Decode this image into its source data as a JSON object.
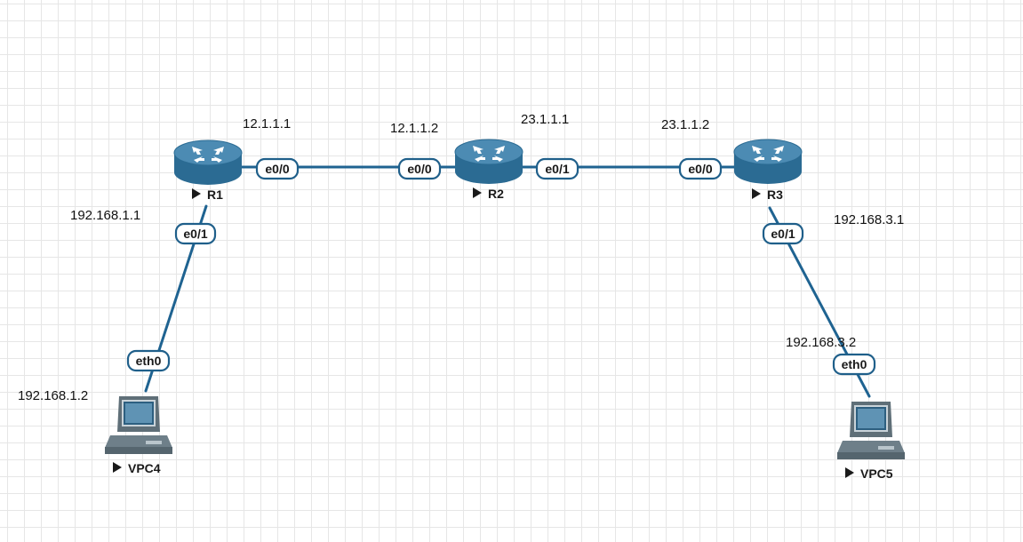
{
  "nodes": {
    "r1": {
      "name": "R1"
    },
    "r2": {
      "name": "R2"
    },
    "r3": {
      "name": "R3"
    },
    "vpc4": {
      "name": "VPC4"
    },
    "vpc5": {
      "name": "VPC5"
    }
  },
  "ports": {
    "r1_e00": "e0/0",
    "r1_e01": "e0/1",
    "r2_e00": "e0/0",
    "r2_e01": "e0/1",
    "r3_e00": "e0/0",
    "r3_e01": "e0/1",
    "vpc4_eth0": "eth0",
    "vpc5_eth0": "eth0"
  },
  "ip_labels": {
    "r1_e00": "12.1.1.1",
    "r2_e00": "12.1.1.2",
    "r2_e01": "23.1.1.1",
    "r3_e00": "23.1.1.2",
    "r1_e01": "192.168.1.1",
    "vpc4_eth0": "192.168.1.2",
    "r3_e01": "192.168.3.1",
    "vpc5_eth0": "192.168.3.2"
  },
  "colors": {
    "link": "#1f6391",
    "router_body": "#2b6b93",
    "router_top": "#4c8bb3",
    "grid": "#e6e6e6"
  },
  "icons": {
    "router": "router-icon",
    "pc": "vpc-computer-icon"
  }
}
